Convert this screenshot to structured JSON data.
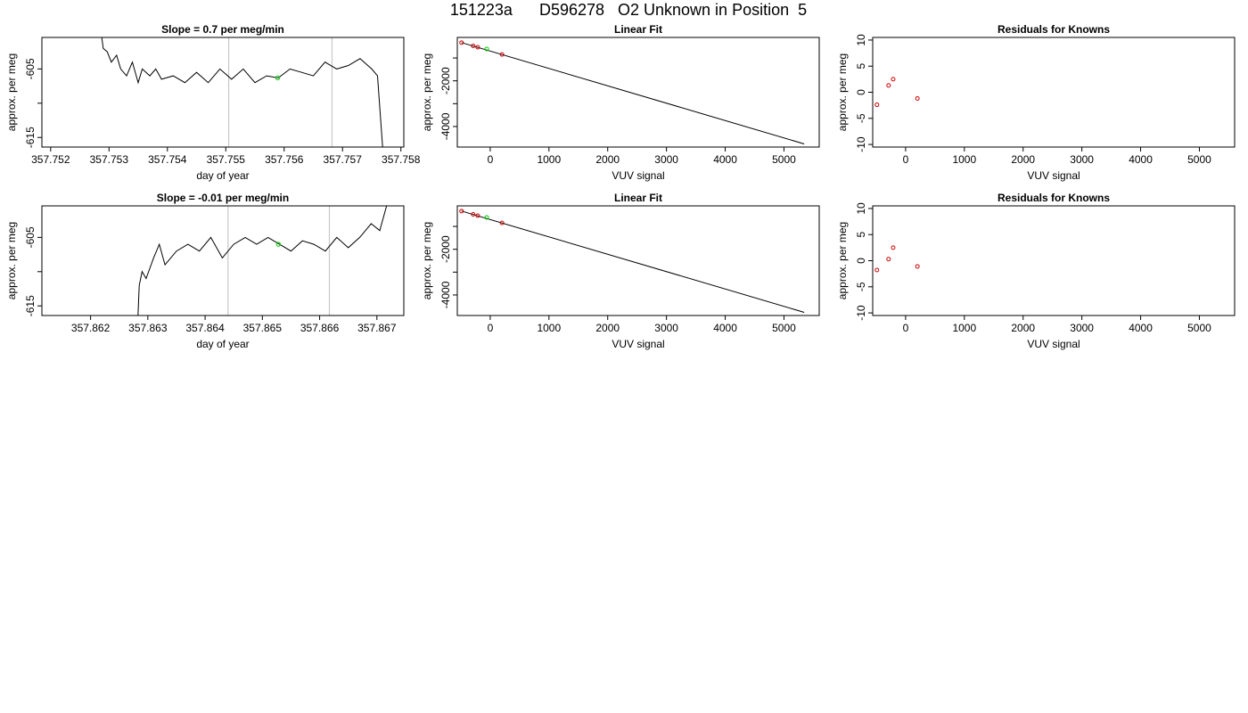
{
  "page": {
    "title": "151223a      D596278   O2 Unknown in Position  5"
  },
  "colors": {
    "trace": "#000000",
    "marker_known": "#cc0000",
    "marker_unknown": "#00cc00",
    "vline": "#c8c8c8"
  },
  "chart_data": [
    {
      "id": "p1",
      "type": "line",
      "title": "Slope =  0.7  per meg/min",
      "xlabel": "day of year",
      "ylabel": "approx. per meg",
      "xlim": [
        357.75185,
        357.75805
      ],
      "ylim": [
        -616.4,
        -600.4
      ],
      "xticks": [
        357.752,
        357.753,
        357.754,
        357.755,
        357.756,
        357.757,
        357.758
      ],
      "xtick_labels": [
        "357.752",
        "357.753",
        "357.754",
        "357.755",
        "357.756",
        "357.757",
        "357.758"
      ],
      "yticks": [
        -615,
        -610,
        -605
      ],
      "ytick_labels": [
        "-615",
        "",
        "-605"
      ],
      "vlines": [
        357.75505,
        357.75682
      ],
      "marker_unknown": [
        357.75589,
        -606.3
      ],
      "series": [
        {
          "x": [
            357.75287,
            357.7529,
            357.75297,
            357.75304,
            357.75313,
            357.7532,
            357.7533,
            357.7534,
            357.7535,
            357.75357,
            357.7537,
            357.7538,
            357.7539,
            357.7541,
            357.7543,
            357.7545,
            357.7547,
            357.7549,
            357.7551,
            357.7553,
            357.7555,
            357.7557,
            357.7559,
            357.7561,
            357.7563,
            357.7565,
            357.7567,
            357.7569,
            357.7571,
            357.7573,
            357.7575,
            357.7576,
            357.75765,
            357.7577
          ],
          "y": [
            -600,
            -602,
            -602.5,
            -604,
            -603,
            -605,
            -606,
            -604,
            -607,
            -605,
            -606,
            -605,
            -606.5,
            -606,
            -607,
            -605.5,
            -607,
            -605,
            -606.5,
            -605,
            -607,
            -606,
            -606.3,
            -605,
            -605.5,
            -606,
            -604,
            -605,
            -604.5,
            -603.5,
            -605,
            -606,
            -612,
            -618
          ]
        }
      ]
    },
    {
      "id": "p2",
      "type": "scatter",
      "title": "Linear Fit",
      "xlabel": "VUV signal",
      "ylabel": "approx. per meg",
      "xlim": [
        -560,
        5600
      ],
      "ylim": [
        -4900,
        -100
      ],
      "xticks": [
        0,
        1000,
        2000,
        3000,
        4000,
        5000
      ],
      "xtick_labels": [
        "0",
        "1000",
        "2000",
        "3000",
        "4000",
        "5000"
      ],
      "yticks": [
        -4000,
        -3000,
        -2000,
        -1000
      ],
      "ytick_labels": [
        "-4000",
        "",
        "-2000",
        ""
      ],
      "fit_line": [
        [
          -488,
          -327
        ],
        [
          5344,
          -4762
        ]
      ],
      "knowns": {
        "x": [
          -488,
          -290,
          -212,
          201
        ],
        "y": [
          -327,
          -470,
          -528,
          -845
        ]
      },
      "unknown": [
        -59,
        -605
      ]
    },
    {
      "id": "p3",
      "type": "scatter",
      "title": "Residuals for Knowns",
      "xlabel": "VUV signal",
      "ylabel": "approx. per meg",
      "xlim": [
        -560,
        5600
      ],
      "ylim": [
        -10.5,
        10.5
      ],
      "xticks": [
        0,
        1000,
        2000,
        3000,
        4000,
        5000
      ],
      "xtick_labels": [
        "0",
        "1000",
        "2000",
        "3000",
        "4000",
        "5000"
      ],
      "yticks": [
        -10,
        -5,
        0,
        5,
        10
      ],
      "ytick_labels": [
        "-10",
        "-5",
        "0",
        "5",
        "10"
      ],
      "points": {
        "x": [
          -488,
          -290,
          -212,
          201
        ],
        "y": [
          -2.4,
          1.3,
          2.5,
          -1.2
        ]
      }
    },
    {
      "id": "p4",
      "type": "line",
      "title": "Slope =  -0.01  per meg/min",
      "xlabel": "day of year",
      "ylabel": "approx. per meg",
      "xlim": [
        357.86115,
        357.86747
      ],
      "ylim": [
        -616.4,
        -600.4
      ],
      "xticks": [
        357.862,
        357.863,
        357.864,
        357.865,
        357.866,
        357.867
      ],
      "xtick_labels": [
        "357.862",
        "357.863",
        "357.864",
        "357.865",
        "357.866",
        "357.867"
      ],
      "yticks": [
        -615,
        -610,
        -605
      ],
      "ytick_labels": [
        "-615",
        "",
        "-605"
      ],
      "vlines": [
        357.8644,
        357.86617
      ],
      "marker_unknown": [
        357.86528,
        -606
      ],
      "series": [
        {
          "x": [
            357.86282,
            357.86285,
            357.8629,
            357.86297,
            357.8631,
            357.8632,
            357.8633,
            357.8635,
            357.8637,
            357.8639,
            357.8641,
            357.8643,
            357.8645,
            357.8647,
            357.8649,
            357.8651,
            357.8653,
            357.8655,
            357.8657,
            357.8659,
            357.8661,
            357.8663,
            357.8665,
            357.8667,
            357.8669,
            357.86705,
            357.86715,
            357.86725
          ],
          "y": [
            -618,
            -612,
            -610,
            -611,
            -608,
            -606,
            -609,
            -607,
            -606,
            -607,
            -605,
            -608,
            -606,
            -605,
            -606,
            -605,
            -606,
            -607,
            -605.5,
            -606,
            -607,
            -605,
            -606.5,
            -605,
            -603,
            -604,
            -601,
            -598
          ]
        }
      ]
    },
    {
      "id": "p5",
      "type": "scatter",
      "title": "Linear Fit",
      "xlabel": "VUV signal",
      "ylabel": "approx. per meg",
      "xlim": [
        -560,
        5600
      ],
      "ylim": [
        -4900,
        -100
      ],
      "xticks": [
        0,
        1000,
        2000,
        3000,
        4000,
        5000
      ],
      "xtick_labels": [
        "0",
        "1000",
        "2000",
        "3000",
        "4000",
        "5000"
      ],
      "yticks": [
        -4000,
        -3000,
        -2000,
        -1000
      ],
      "ytick_labels": [
        "-4000",
        "",
        "-2000",
        ""
      ],
      "fit_line": [
        [
          -488,
          -327
        ],
        [
          5344,
          -4762
        ]
      ],
      "knowns": {
        "x": [
          -488,
          -290,
          -212,
          201
        ],
        "y": [
          -327,
          -470,
          -528,
          -845
        ]
      },
      "unknown": [
        -59,
        -605
      ]
    },
    {
      "id": "p6",
      "type": "scatter",
      "title": "Residuals for Knowns",
      "xlabel": "VUV signal",
      "ylabel": "approx. per meg",
      "xlim": [
        -560,
        5600
      ],
      "ylim": [
        -10.5,
        10.5
      ],
      "xticks": [
        0,
        1000,
        2000,
        3000,
        4000,
        5000
      ],
      "xtick_labels": [
        "0",
        "1000",
        "2000",
        "3000",
        "4000",
        "5000"
      ],
      "yticks": [
        -10,
        -5,
        0,
        5,
        10
      ],
      "ytick_labels": [
        "-10",
        "-5",
        "0",
        "5",
        "10"
      ],
      "points": {
        "x": [
          -488,
          -290,
          -212,
          201
        ],
        "y": [
          -1.8,
          0.3,
          2.5,
          -1.1
        ]
      }
    }
  ]
}
